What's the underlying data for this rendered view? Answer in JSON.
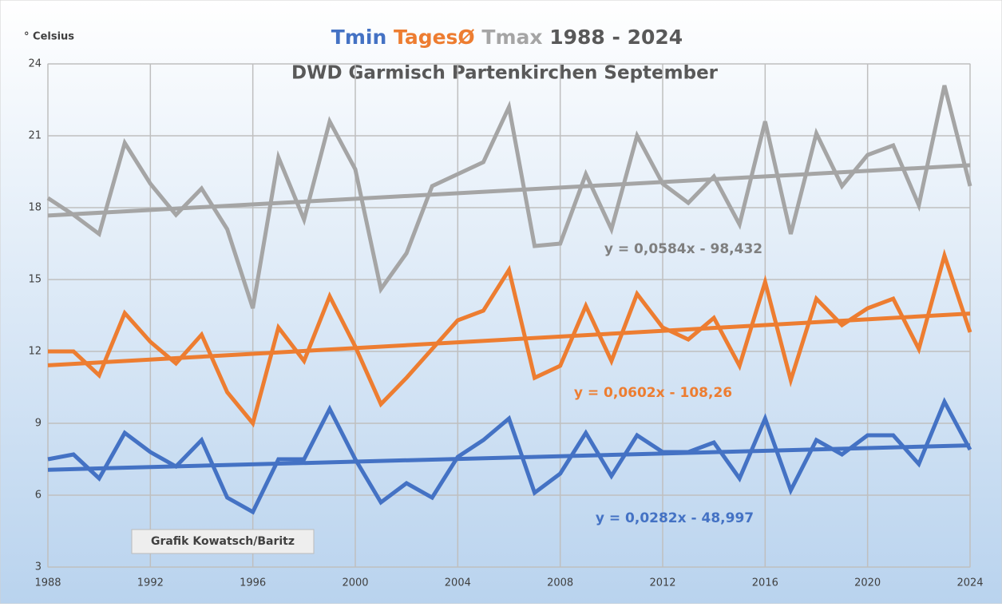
{
  "chart_data": {
    "type": "line",
    "title_suffix": "1988 - 2024",
    "subtitle": "DWD Garmisch Partenkirchen September",
    "y_label": "° Celsius",
    "annotation": "Grafik Kowatsch/Baritz",
    "x": [
      1988,
      1989,
      1990,
      1991,
      1992,
      1993,
      1994,
      1995,
      1996,
      1997,
      1998,
      1999,
      2000,
      2001,
      2002,
      2003,
      2004,
      2005,
      2006,
      2007,
      2008,
      2009,
      2010,
      2011,
      2012,
      2013,
      2014,
      2015,
      2016,
      2017,
      2018,
      2019,
      2020,
      2021,
      2022,
      2023,
      2024
    ],
    "xlim": [
      1988,
      2024
    ],
    "xticks": [
      1988,
      1992,
      1996,
      2000,
      2004,
      2008,
      2012,
      2016,
      2020,
      2024
    ],
    "ylim": [
      3,
      24
    ],
    "yticks": [
      3,
      6,
      9,
      12,
      15,
      18,
      21,
      24
    ],
    "grid": true,
    "series": [
      {
        "name": "Tmin",
        "color": "#4472c4",
        "values": [
          7.5,
          7.7,
          6.7,
          8.6,
          7.8,
          7.2,
          8.3,
          5.9,
          5.3,
          7.5,
          7.5,
          9.6,
          7.5,
          5.7,
          6.5,
          5.9,
          7.6,
          8.3,
          9.2,
          6.1,
          6.9,
          8.6,
          6.8,
          8.5,
          7.8,
          7.8,
          8.2,
          6.7,
          9.2,
          6.2,
          8.3,
          7.7,
          8.5,
          8.5,
          7.3,
          9.9,
          7.9
        ],
        "trend": {
          "label": "y = 0,0282x - 48,997",
          "x": [
            1988,
            2024
          ],
          "values": [
            7.06,
            8.08
          ]
        }
      },
      {
        "name": "TagesØ",
        "color": "#ed7d31",
        "values": [
          12.0,
          12.0,
          11.0,
          13.6,
          12.4,
          11.5,
          12.7,
          10.3,
          9.0,
          13.0,
          11.6,
          14.3,
          12.2,
          9.8,
          10.9,
          12.1,
          13.3,
          13.7,
          15.4,
          10.9,
          11.4,
          13.9,
          11.6,
          14.4,
          13.0,
          12.5,
          13.4,
          11.4,
          14.9,
          10.8,
          14.2,
          13.1,
          13.8,
          14.2,
          12.1,
          16.0,
          12.8
        ],
        "trend": {
          "label": "y = 0,0602x - 108,26",
          "x": [
            1988,
            2024
          ],
          "values": [
            11.42,
            13.58
          ]
        }
      },
      {
        "name": "Tmax",
        "color": "#a5a5a5",
        "values": [
          18.4,
          17.7,
          16.9,
          20.7,
          19.0,
          17.7,
          18.8,
          17.1,
          13.8,
          20.1,
          17.5,
          21.6,
          19.6,
          14.6,
          16.1,
          18.9,
          19.4,
          19.9,
          22.2,
          16.4,
          16.5,
          19.4,
          17.1,
          21.0,
          19.0,
          18.2,
          19.3,
          17.3,
          21.6,
          16.9,
          21.1,
          18.9,
          20.2,
          20.6,
          18.1,
          23.1,
          18.9
        ],
        "trend": {
          "label": "y = 0,0584x - 98,432",
          "x": [
            1988,
            2024
          ],
          "values": [
            17.67,
            19.77
          ]
        }
      }
    ]
  }
}
